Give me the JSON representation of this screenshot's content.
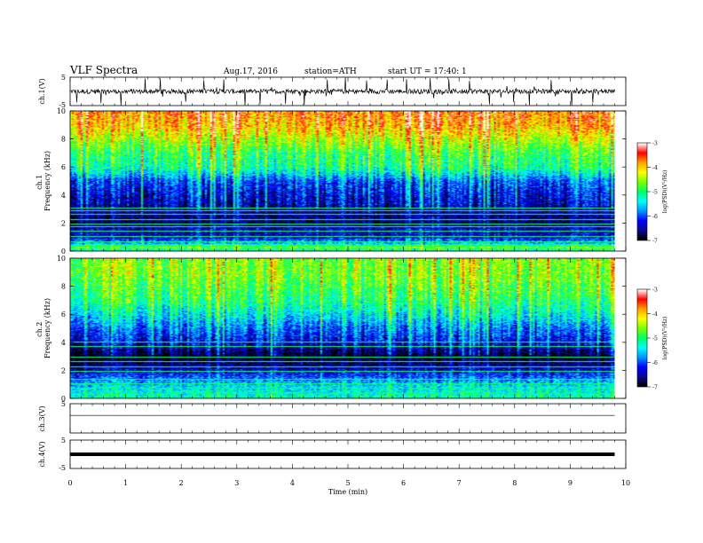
{
  "header": {
    "title": "VLF  Spectra",
    "date": "Aug.17, 2016",
    "station": "station=ATH",
    "start": "start  UT =   17:40: 1"
  },
  "chart_data": [
    {
      "type": "line",
      "name": "ch1-waveform",
      "ylabel": "ch.1(V)",
      "xlim": [
        0,
        10
      ],
      "ylim": [
        -5,
        5
      ],
      "yticks": [
        "5",
        "-5"
      ],
      "data_end_min": 9.8,
      "baseline": 0,
      "noise_amplitude": 1.2,
      "spikes": [
        0.12,
        0.55,
        0.91,
        1.35,
        1.62,
        2.08,
        2.41,
        2.77,
        3.15,
        3.42,
        3.88,
        4.21,
        4.63,
        4.95,
        5.34,
        5.71,
        6.05,
        6.48,
        6.82,
        7.19,
        7.55,
        7.98,
        8.27,
        8.66,
        9.03,
        9.41
      ]
    },
    {
      "type": "heatmap",
      "name": "ch1-spectrogram",
      "ylabel": "ch.1\nFrequency  (kHz)",
      "xlim": [
        0,
        10
      ],
      "ylim": [
        0,
        10
      ],
      "yticks": [
        "0",
        "2",
        "4",
        "6",
        "8",
        "10"
      ],
      "data_end_min": 9.8,
      "colorbar": {
        "label": "log(PSD)(V²/Hz)",
        "range": [
          -7,
          -3
        ],
        "ticks": [
          "-3",
          "-4",
          "-5",
          "-6",
          "-7"
        ]
      },
      "psd_profile_khz": [
        [
          0,
          -5.2
        ],
        [
          0.3,
          -4.6
        ],
        [
          0.5,
          -5.6
        ],
        [
          1.0,
          -6.4
        ],
        [
          1.5,
          -6.4
        ],
        [
          2.0,
          -6.7
        ],
        [
          3.0,
          -6.5
        ],
        [
          4.0,
          -6.3
        ],
        [
          5.0,
          -6.0
        ],
        [
          5.5,
          -5.5
        ],
        [
          6.0,
          -5.1
        ],
        [
          7.0,
          -4.9
        ],
        [
          8.0,
          -4.4
        ],
        [
          9.0,
          -3.9
        ],
        [
          10.0,
          -3.7
        ]
      ],
      "lines_khz": [
        0.3,
        0.65,
        1.05,
        1.4,
        1.7,
        1.9,
        2.25,
        2.6,
        2.85,
        3.05
      ]
    },
    {
      "type": "heatmap",
      "name": "ch2-spectrogram",
      "ylabel": "ch.2\nFrequency  (kHz)",
      "xlim": [
        0,
        10
      ],
      "ylim": [
        0,
        10
      ],
      "yticks": [
        "0",
        "2",
        "4",
        "6",
        "8",
        "10"
      ],
      "data_end_min": 9.8,
      "colorbar": {
        "label": "log(PSD)(V²/Hz)",
        "range": [
          -7,
          -3
        ],
        "ticks": [
          "-3",
          "-4",
          "-5",
          "-6",
          "-7"
        ]
      },
      "psd_profile_khz": [
        [
          0,
          -5.2
        ],
        [
          1.0,
          -5.6
        ],
        [
          2.0,
          -6.4
        ],
        [
          2.6,
          -6.8
        ],
        [
          3.0,
          -6.9
        ],
        [
          3.5,
          -6.6
        ],
        [
          4.0,
          -6.3
        ],
        [
          5.0,
          -5.9
        ],
        [
          6.0,
          -5.4
        ],
        [
          7.0,
          -5.0
        ],
        [
          8.0,
          -4.8
        ],
        [
          9.0,
          -4.6
        ],
        [
          10.0,
          -4.6
        ]
      ],
      "lines_khz": [
        0.3,
        0.7,
        1.0,
        1.35,
        1.9,
        2.25,
        2.6,
        2.9,
        3.7,
        4.0
      ]
    },
    {
      "type": "line",
      "name": "ch3-waveform",
      "ylabel": "ch.3(V)",
      "xlim": [
        0,
        10
      ],
      "ylim": [
        -5,
        5
      ],
      "yticks": [
        "5"
      ],
      "data_end_min": 9.8,
      "baseline": 1.0,
      "noise_amplitude": 0.0
    },
    {
      "type": "line",
      "name": "ch4-waveform",
      "ylabel": "ch.4(V)",
      "xlim": [
        0,
        10
      ],
      "ylim": [
        -5,
        5
      ],
      "yticks": [
        "5",
        "-5"
      ],
      "data_end_min": 9.8,
      "baseline": 0,
      "noise_amplitude": 0.0,
      "thick": true
    }
  ],
  "xaxis": {
    "label": "Time  (min)",
    "range": [
      0,
      10
    ],
    "ticks": [
      "0",
      "1",
      "2",
      "3",
      "4",
      "5",
      "6",
      "7",
      "8",
      "9",
      "10"
    ]
  },
  "colors": {
    "waveform": "#000000",
    "colormap": [
      "#000000",
      "#0a0a8c",
      "#0000ff",
      "#0096ff",
      "#00ffff",
      "#00ff64",
      "#78ff00",
      "#ffff00",
      "#ffa000",
      "#ff0000",
      "#ffffff"
    ]
  }
}
